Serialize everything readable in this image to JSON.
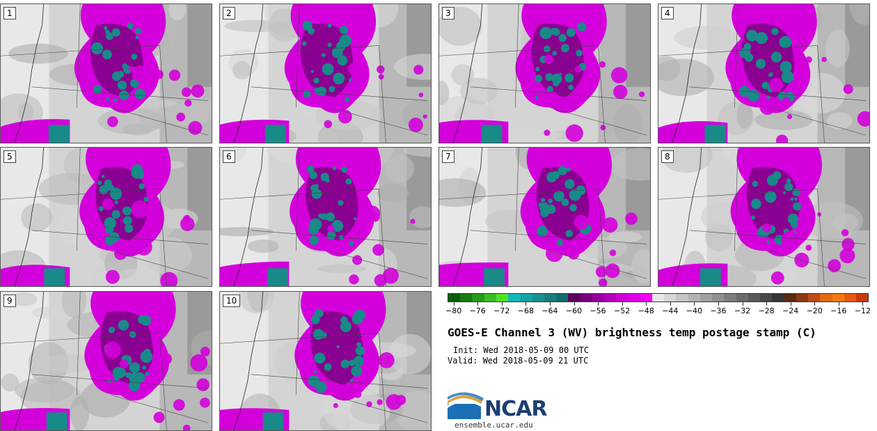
{
  "panels": [
    {
      "label": "1"
    },
    {
      "label": "2"
    },
    {
      "label": "3"
    },
    {
      "label": "4"
    },
    {
      "label": "5"
    },
    {
      "label": "6"
    },
    {
      "label": "7"
    },
    {
      "label": "8"
    },
    {
      "label": "9"
    },
    {
      "label": "10"
    }
  ],
  "colorbar": {
    "colors": [
      "#0b5e0b",
      "#1a7a12",
      "#28991a",
      "#3cbc24",
      "#52e02e",
      "#14b7b7",
      "#14a3a3",
      "#1a8f8f",
      "#1a7d7d",
      "#156b6b",
      "#5c0060",
      "#7a007f",
      "#98009e",
      "#b300ba",
      "#cc00d4",
      "#e000e8",
      "#f000f7",
      "#e6e6e6",
      "#d6d6d6",
      "#c4c4c4",
      "#b3b3b3",
      "#a1a1a1",
      "#8f8f8f",
      "#7d7d7d",
      "#6b6b6b",
      "#595959",
      "#474747",
      "#363636",
      "#5a2a14",
      "#8a3a14",
      "#bb4d17",
      "#e06a16",
      "#f07a10",
      "#e45a12",
      "#c83a0e"
    ],
    "tick_values": [
      -80,
      -76,
      -72,
      -68,
      -64,
      -60,
      -56,
      -52,
      -48,
      -44,
      -40,
      -36,
      -32,
      -28,
      -24,
      -20,
      -16,
      -12
    ],
    "min": -81,
    "max": -11
  },
  "title": "GOES-E Channel 3 (WV) brightness temp postage stamp (C)",
  "init": "Init: Wed 2018-05-09 00 UTC",
  "valid": "Valid: Wed 2018-05-09 21 UTC",
  "logo": {
    "name": "NCAR",
    "url": "ensemble.ucar.edu"
  }
}
